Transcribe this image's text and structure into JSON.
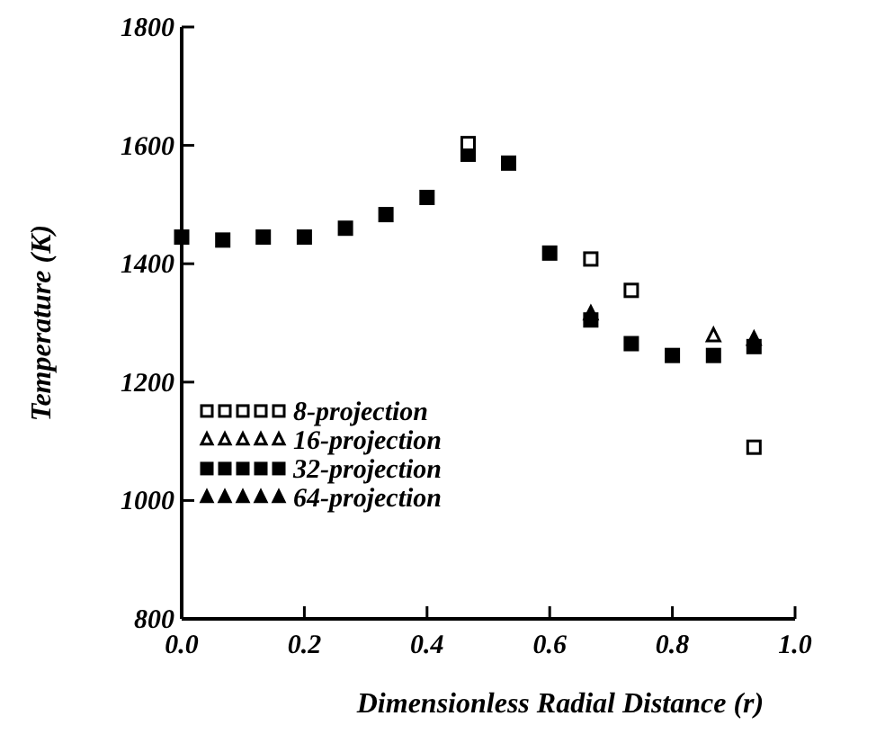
{
  "chart_data": {
    "type": "scatter",
    "xlabel": "Dimensionless Radial Distance (r)",
    "ylabel": "Temperature (K)",
    "x": [
      0,
      0.067,
      0.133,
      0.2,
      0.267,
      0.333,
      0.4,
      0.467,
      0.533,
      0.6,
      0.667,
      0.733,
      0.8,
      0.867,
      0.933
    ],
    "xlim": [
      0,
      1
    ],
    "xticks": [
      {
        "value": 0,
        "label": "0.0"
      },
      0.2,
      0.4,
      0.6,
      0.8,
      {
        "value": 1,
        "label": "1.0"
      }
    ],
    "ylim": [
      800,
      1800
    ],
    "yticks": [
      800,
      1000,
      1200,
      1400,
      1600,
      1800
    ],
    "grid": false,
    "legend": "bottom left",
    "series": [
      {
        "name": "32-projection",
        "color": "#000000",
        "marker": "square",
        "values": [
          1445,
          1440,
          1445,
          1445,
          1460,
          1483,
          1512,
          1585,
          1570,
          1418,
          1305,
          1265,
          1245,
          1245,
          1260
        ]
      },
      {
        "name": "8-projection",
        "color": "#ffffff",
        "marker": "square",
        "values": [
          null,
          null,
          null,
          null,
          null,
          null,
          null,
          1603,
          null,
          null,
          1408,
          1355,
          null,
          null,
          1090
        ]
      },
      {
        "name": "16-projection",
        "color": "#ffffff",
        "marker": "triangle",
        "values": [
          null,
          null,
          null,
          null,
          null,
          null,
          null,
          null,
          null,
          null,
          null,
          null,
          null,
          1278,
          null
        ]
      },
      {
        "name": "64-projection",
        "color": "#000000",
        "marker": "triangle",
        "values": [
          null,
          null,
          null,
          null,
          null,
          null,
          null,
          null,
          null,
          null,
          1315,
          null,
          null,
          null,
          1272
        ]
      }
    ]
  }
}
